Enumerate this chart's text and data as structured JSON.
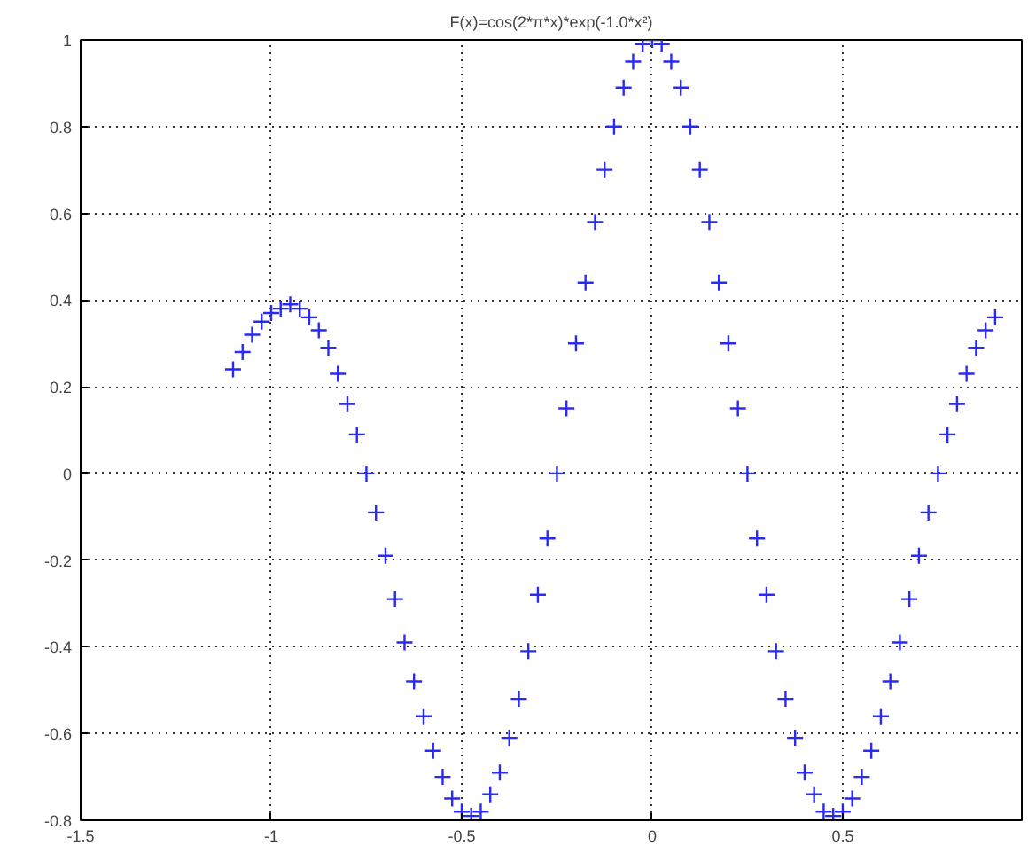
{
  "chart_data": {
    "type": "scatter",
    "title": "F(x)=cos(2*π*x)*exp(-1.0*x²)",
    "x": [
      -1.1,
      -1.075,
      -1.05,
      -1.025,
      -1.0,
      -0.975,
      -0.95,
      -0.925,
      -0.9,
      -0.875,
      -0.85,
      -0.825,
      -0.8,
      -0.775,
      -0.75,
      -0.725,
      -0.7,
      -0.675,
      -0.65,
      -0.625,
      -0.6,
      -0.575,
      -0.55,
      -0.525,
      -0.5,
      -0.475,
      -0.45,
      -0.425,
      -0.4,
      -0.375,
      -0.35,
      -0.325,
      -0.3,
      -0.275,
      -0.25,
      -0.225,
      -0.2,
      -0.175,
      -0.15,
      -0.125,
      -0.1,
      -0.075,
      -0.05,
      -0.025,
      0,
      0.025,
      0.05,
      0.075,
      0.1,
      0.125,
      0.15,
      0.175,
      0.2,
      0.225,
      0.25,
      0.275,
      0.3,
      0.325,
      0.35,
      0.375,
      0.4,
      0.425,
      0.45,
      0.475,
      0.5,
      0.525,
      0.55,
      0.575,
      0.6,
      0.625,
      0.65,
      0.675,
      0.7,
      0.725,
      0.75,
      0.775,
      0.8,
      0.825,
      0.85,
      0.875,
      0.9
    ],
    "series": [
      {
        "color": "#2a2af5",
        "values": [
          0.24,
          0.28,
          0.32,
          0.35,
          0.37,
          0.38,
          0.39,
          0.38,
          0.36,
          0.33,
          0.29,
          0.23,
          0.16,
          0.09,
          0,
          -0.09,
          -0.19,
          -0.29,
          -0.39,
          -0.48,
          -0.56,
          -0.64,
          -0.7,
          -0.75,
          -0.78,
          -0.79,
          -0.78,
          -0.74,
          -0.69,
          -0.61,
          -0.52,
          -0.41,
          -0.28,
          -0.15,
          0,
          0.15,
          0.3,
          0.44,
          0.58,
          0.7,
          0.8,
          0.89,
          0.95,
          0.99,
          1.0,
          0.99,
          0.95,
          0.89,
          0.8,
          0.7,
          0.58,
          0.44,
          0.3,
          0.15,
          0,
          -0.15,
          -0.28,
          -0.41,
          -0.52,
          -0.61,
          -0.69,
          -0.74,
          -0.78,
          -0.79,
          -0.78,
          -0.75,
          -0.7,
          -0.64,
          -0.56,
          -0.48,
          -0.39,
          -0.29,
          -0.19,
          -0.09,
          0,
          0.09,
          0.16,
          0.23,
          0.29,
          0.33,
          0.36
        ]
      }
    ],
    "marker": "cross",
    "grid": true,
    "xlim": [
      -1.5,
      0.97
    ],
    "ylim": [
      -0.8,
      1.0
    ],
    "xticks": [
      -1.5,
      -1,
      -0.5,
      0,
      0.5
    ],
    "yticks": [
      -0.8,
      -0.6,
      -0.4,
      -0.2,
      0,
      0.2,
      0.4,
      0.6,
      0.8,
      1
    ]
  }
}
